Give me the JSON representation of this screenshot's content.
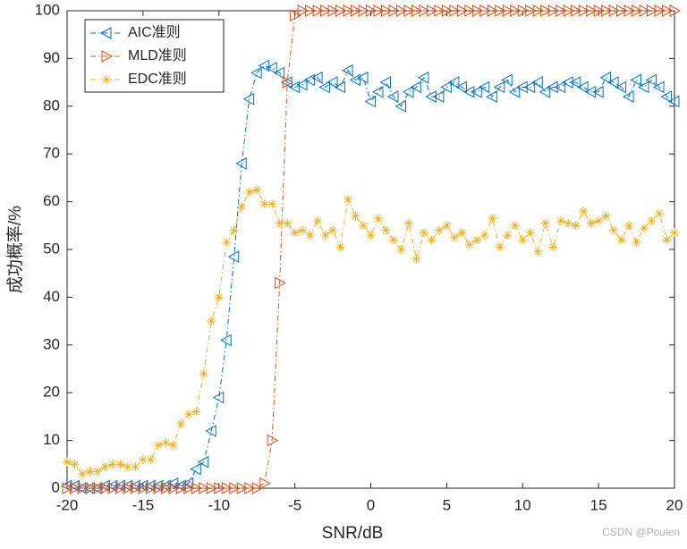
{
  "chart_data": {
    "type": "line",
    "xlabel": "SNR/dB",
    "ylabel": "成功概率/%",
    "watermark": "CSDN @Poulen",
    "x": [
      -20,
      -19.5,
      -19,
      -18.5,
      -18,
      -17.5,
      -17,
      -16.5,
      -16,
      -15.5,
      -15,
      -14.5,
      -14,
      -13.5,
      -13,
      -12.5,
      -12,
      -11.5,
      -11,
      -10.5,
      -10,
      -9.5,
      -9,
      -8.5,
      -8,
      -7.5,
      -7,
      -6.5,
      -6,
      -5.5,
      -5,
      -4.5,
      -4,
      -3.5,
      -3,
      -2.5,
      -2,
      -1.5,
      -1,
      -0.5,
      0,
      0.5,
      1,
      1.5,
      2,
      2.5,
      3,
      3.5,
      4,
      4.5,
      5,
      5.5,
      6,
      6.5,
      7,
      7.5,
      8,
      8.5,
      9,
      9.5,
      10,
      10.5,
      11,
      11.5,
      12,
      12.5,
      13,
      13.5,
      14,
      14.5,
      15,
      15.5,
      16,
      16.5,
      17,
      17.5,
      18,
      18.5,
      19,
      19.5,
      20
    ],
    "series": [
      {
        "name": "AIC准则",
        "color": "#0072BD",
        "marker": "triangle-left",
        "values": [
          0.5,
          0.5,
          0,
          0,
          0,
          0.5,
          0.5,
          0.5,
          0.5,
          0.5,
          0.5,
          0.5,
          0.5,
          0.5,
          1,
          0.5,
          1,
          4,
          5.5,
          12,
          19,
          31,
          48.5,
          68,
          81.5,
          87,
          88.5,
          88,
          87,
          85,
          84,
          84.5,
          85.5,
          86,
          84,
          85,
          84,
          87.5,
          85.5,
          86,
          81,
          83,
          85,
          82,
          80,
          83,
          84,
          86,
          82,
          82,
          84,
          85,
          84,
          83,
          83,
          84,
          82,
          84,
          85.5,
          83,
          84,
          84,
          85,
          83,
          84,
          84,
          85,
          85,
          84,
          83,
          83,
          86,
          85,
          84,
          82,
          85.5,
          84,
          85.5,
          84,
          82,
          81
        ]
      },
      {
        "name": "MLD准则",
        "color": "#D95319",
        "marker": "triangle-right",
        "values": [
          0,
          0,
          0,
          0,
          0,
          0,
          0,
          0,
          0,
          0,
          0,
          0,
          0,
          0,
          0,
          0,
          0,
          0,
          0,
          0,
          0,
          0,
          0,
          0,
          0,
          0,
          1,
          10,
          43,
          85,
          99,
          100,
          100,
          100,
          100,
          100,
          100,
          100,
          100,
          100,
          100,
          100,
          100,
          100,
          100,
          100,
          100,
          100,
          100,
          100,
          100,
          100,
          100,
          100,
          100,
          100,
          100,
          100,
          100,
          100,
          100,
          100,
          100,
          100,
          100,
          100,
          100,
          100,
          100,
          100,
          100,
          100,
          100,
          100,
          100,
          100,
          100,
          100,
          100,
          100,
          100
        ]
      },
      {
        "name": "EDC准则",
        "color": "#EDB120",
        "marker": "asterisk",
        "values": [
          5.5,
          5,
          3,
          3.5,
          3.5,
          4.5,
          5,
          5,
          4.5,
          4.5,
          6,
          6,
          9,
          9.5,
          9,
          13.5,
          15.5,
          16,
          24,
          35,
          40,
          51.5,
          54,
          59,
          62,
          62.5,
          59.5,
          59.5,
          55.5,
          55.5,
          53.5,
          54,
          53,
          56,
          53,
          54,
          50.5,
          60.5,
          57,
          55,
          53,
          56.5,
          54,
          52,
          50,
          55.5,
          48,
          53.5,
          52,
          54,
          55,
          52.5,
          53.5,
          51,
          52,
          53,
          56.5,
          50.5,
          53,
          55,
          52,
          53.5,
          49.5,
          55.5,
          50.5,
          56,
          55.5,
          55,
          58,
          55.5,
          56,
          57,
          54,
          52,
          55,
          51.5,
          54.5,
          56,
          57.5,
          52,
          53.5
        ]
      }
    ],
    "xlim": [
      -20,
      20
    ],
    "xticks": [
      -20,
      -15,
      -10,
      -5,
      0,
      5,
      10,
      15,
      20
    ],
    "ylim": [
      0,
      100
    ],
    "yticks": [
      0,
      10,
      20,
      30,
      40,
      50,
      60,
      70,
      80,
      90,
      100
    ],
    "legend": "upper-left"
  }
}
